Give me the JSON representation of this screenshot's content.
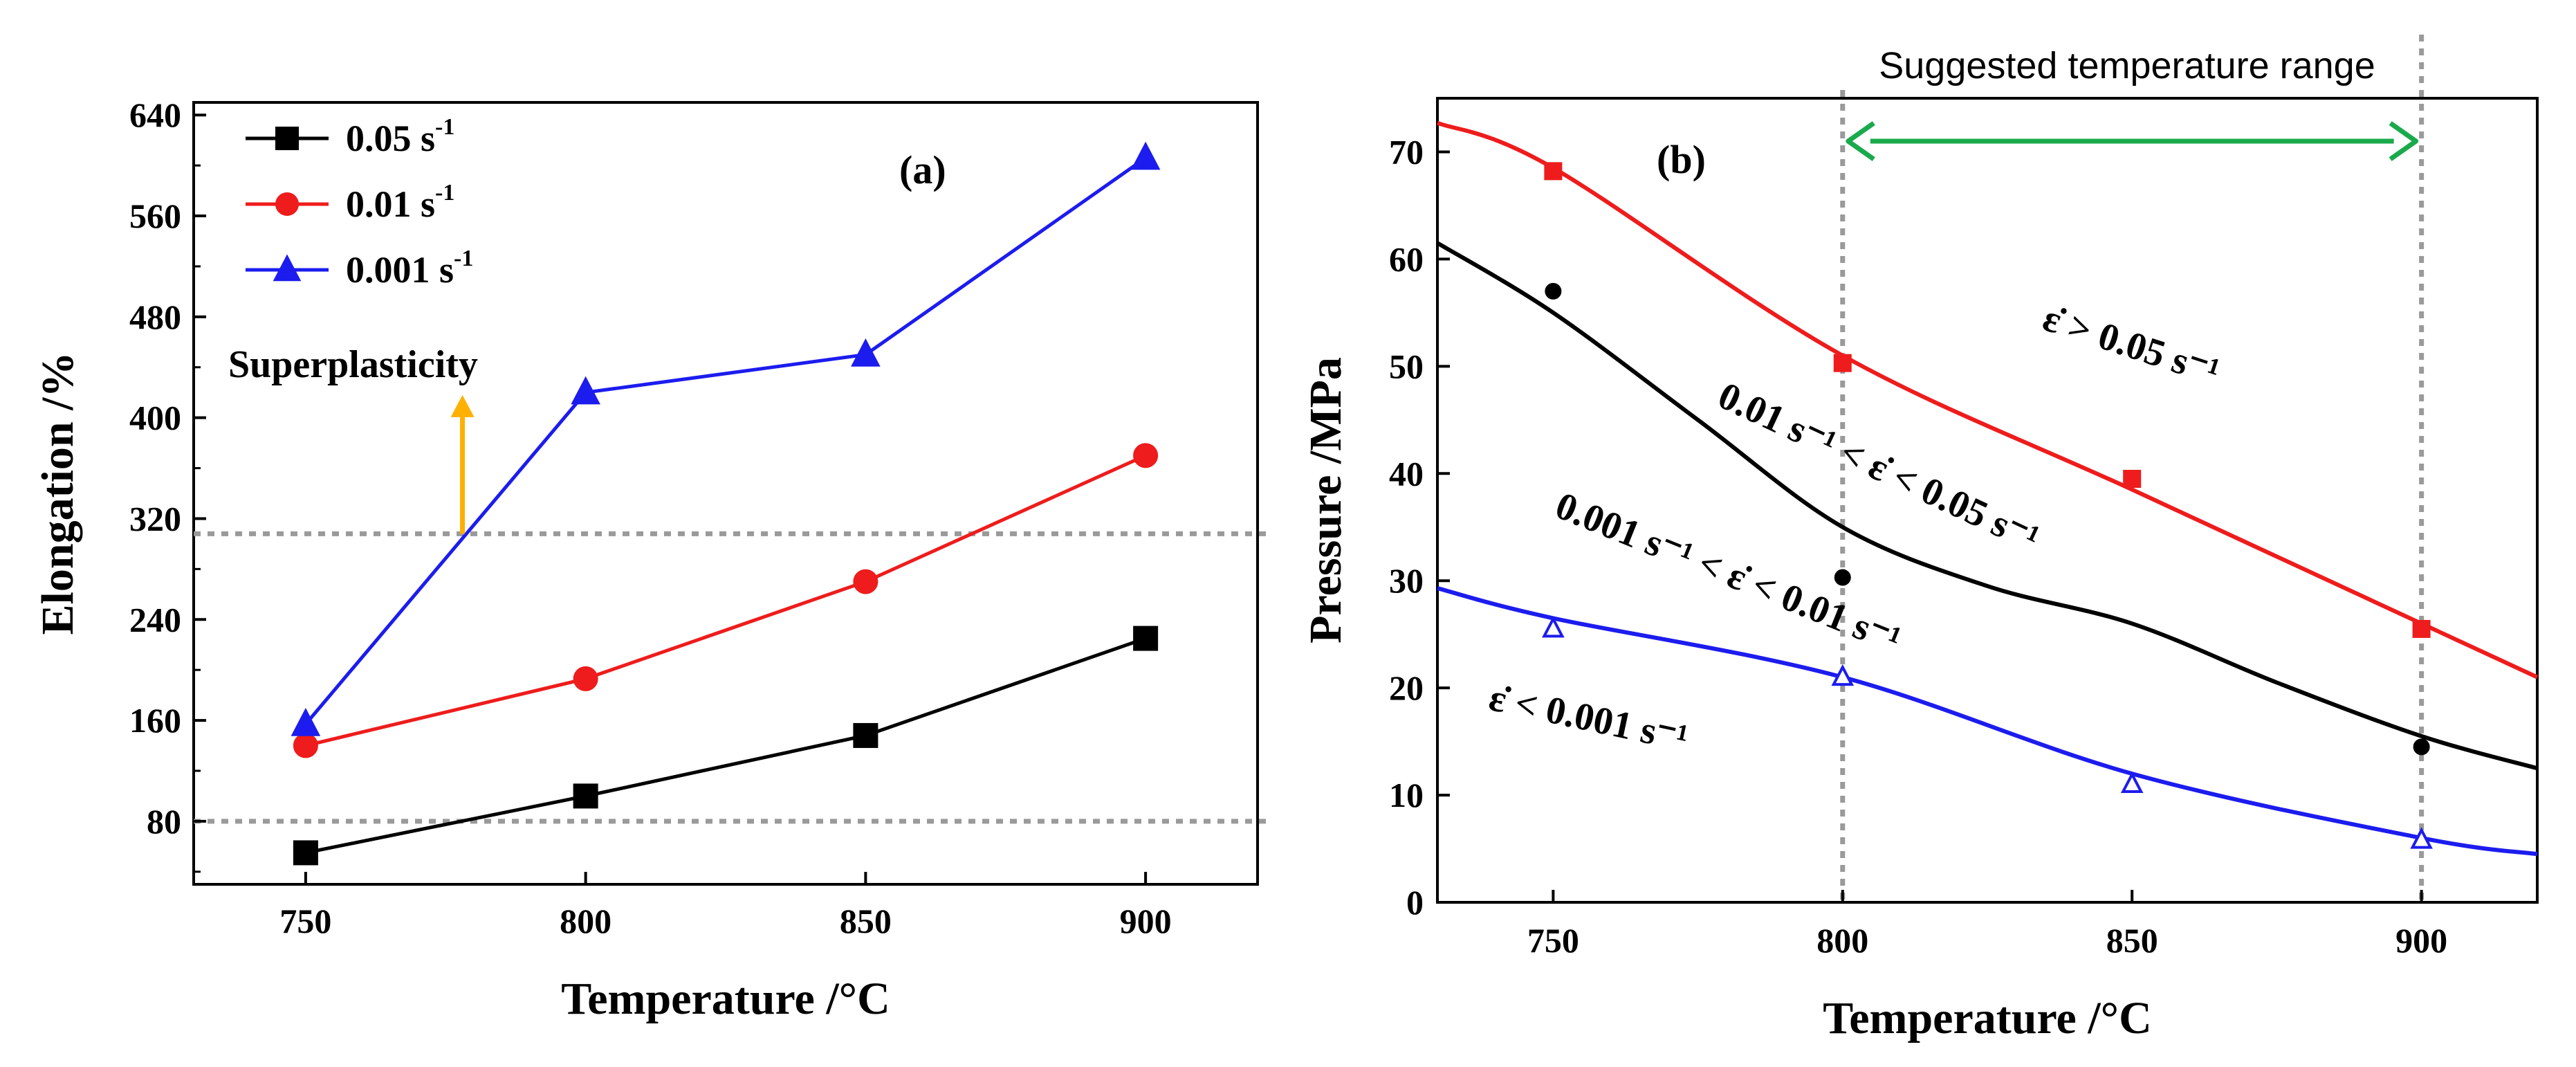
{
  "colors": {
    "series_black": "#000000",
    "series_red": "#ee1c1c",
    "series_blue": "#1c1cee",
    "arrow_orange": "#ffb000",
    "arrow_green": "#1aaa4c",
    "ref_line": "#9a9a9a"
  },
  "chart_data": [
    {
      "type": "line",
      "panel_label": "(a)",
      "xlabel": "Temperature /°C",
      "ylabel": "Elongation /%",
      "x": [
        750,
        800,
        850,
        900
      ],
      "xlim": [
        730,
        920
      ],
      "ylim": [
        30,
        650
      ],
      "xticks": [
        750,
        800,
        850,
        900
      ],
      "yticks": [
        80,
        160,
        240,
        320,
        400,
        480,
        560,
        640
      ],
      "legend_position": "top-left",
      "series": [
        {
          "name": "0.05 s",
          "name_sup": "-1",
          "marker": "square",
          "color_key": "series_black",
          "values": [
            55,
            100,
            148,
            225
          ]
        },
        {
          "name": "0.01 s",
          "name_sup": "-1",
          "marker": "circle",
          "color_key": "series_red",
          "values": [
            140,
            193,
            270,
            370
          ]
        },
        {
          "name": "0.001 s",
          "name_sup": "-1",
          "marker": "triangle",
          "color_key": "series_blue",
          "values": [
            157,
            420,
            450,
            606
          ]
        }
      ],
      "reference_lines_y": [
        80,
        308
      ],
      "annotation": {
        "text": "Superplasticity",
        "arrow_x": 778,
        "arrow_from_y": 308,
        "arrow_to_y": 418
      }
    },
    {
      "type": "line",
      "panel_label": "(b)",
      "xlabel": "Temperature /°C",
      "ylabel": "Pressure /MPa",
      "xlim": [
        730,
        920
      ],
      "ylim": [
        0,
        75
      ],
      "xticks": [
        750,
        800,
        850,
        900
      ],
      "yticks": [
        0,
        10,
        20,
        30,
        40,
        50,
        60,
        70
      ],
      "vertical_lines_x": [
        800,
        900
      ],
      "range_annotation": {
        "text": "Suggested temperature range",
        "from_x": 800,
        "to_x": 900,
        "y": 71
      },
      "curves": [
        {
          "color_key": "series_red",
          "x": [
            730,
            750,
            800,
            850,
            900,
            920
          ],
          "y": [
            72.7,
            68.5,
            51.0,
            38.5,
            26.0,
            21.0
          ]
        },
        {
          "color_key": "series_black",
          "x": [
            730,
            750,
            775,
            800,
            825,
            850,
            875,
            900,
            920
          ],
          "y": [
            61.5,
            55.0,
            45.0,
            35.0,
            29.5,
            26.0,
            20.5,
            15.5,
            12.5
          ]
        },
        {
          "color_key": "series_blue",
          "x": [
            730,
            750,
            800,
            850,
            900,
            920
          ],
          "y": [
            29.3,
            26.5,
            21.0,
            12.0,
            6.0,
            4.5
          ]
        }
      ],
      "points": [
        {
          "color_key": "series_red",
          "marker": "square",
          "x": [
            750,
            800,
            850,
            900
          ],
          "y": [
            68.2,
            50.3,
            39.5,
            25.5
          ]
        },
        {
          "color_key": "series_black",
          "marker": "circle",
          "x": [
            750,
            800,
            900
          ],
          "y": [
            57.0,
            30.3,
            14.5
          ]
        },
        {
          "color_key": "series_blue",
          "marker": "triangle",
          "x": [
            750,
            800,
            850,
            900
          ],
          "y": [
            25.5,
            21.0,
            11.0,
            5.8
          ]
        }
      ],
      "region_labels": [
        "ε̇ > 0.05 s⁻¹",
        "0.01 s⁻¹ < ε̇ < 0.05 s⁻¹",
        "0.001 s⁻¹ < ε̇ < 0.01 s⁻¹",
        "ε̇ < 0.001 s⁻¹"
      ]
    }
  ]
}
